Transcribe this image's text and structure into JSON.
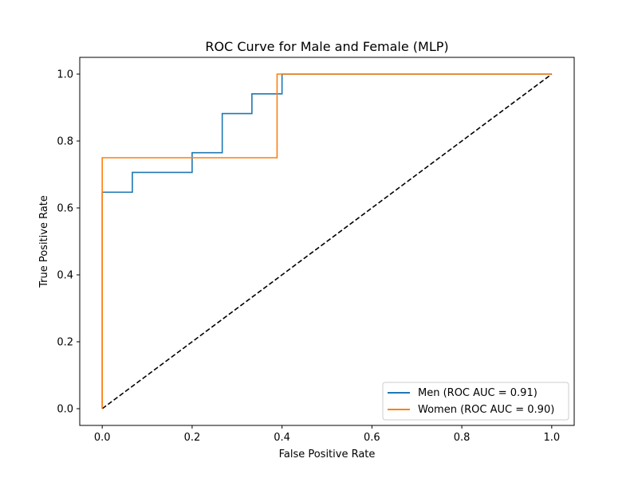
{
  "chart_data": {
    "type": "line",
    "title": "ROC Curve for Male and Female (MLP)",
    "xlabel": "False Positive Rate",
    "ylabel": "True Positive Rate",
    "xlim": [
      -0.05,
      1.05
    ],
    "ylim": [
      -0.05,
      1.05
    ],
    "xticks": [
      0.0,
      0.2,
      0.4,
      0.6,
      0.8,
      1.0
    ],
    "yticks": [
      0.0,
      0.2,
      0.4,
      0.6,
      0.8,
      1.0
    ],
    "xtick_labels": [
      "0.0",
      "0.2",
      "0.4",
      "0.6",
      "0.8",
      "1.0"
    ],
    "ytick_labels": [
      "0.0",
      "0.2",
      "0.4",
      "0.6",
      "0.8",
      "1.0"
    ],
    "grid": false,
    "legend_position": "lower-right",
    "series": [
      {
        "name": "Men (ROC AUC = 0.91)",
        "color": "#1f77b4",
        "x": [
          0.0,
          0.0,
          0.0,
          0.067,
          0.067,
          0.2,
          0.2,
          0.267,
          0.267,
          0.333,
          0.333,
          0.4,
          0.4,
          1.0
        ],
        "y": [
          0.0,
          0.647,
          0.647,
          0.647,
          0.706,
          0.706,
          0.765,
          0.765,
          0.882,
          0.882,
          0.941,
          0.941,
          1.0,
          1.0
        ]
      },
      {
        "name": "Women (ROC AUC = 0.90)",
        "color": "#ff7f0e",
        "x": [
          0.0,
          0.0,
          0.389,
          0.389,
          1.0
        ],
        "y": [
          0.0,
          0.75,
          0.75,
          1.0,
          1.0
        ]
      }
    ],
    "reference_line": {
      "x": [
        0.0,
        1.0
      ],
      "y": [
        0.0,
        1.0
      ],
      "color": "#000000",
      "style": "dashed"
    }
  }
}
